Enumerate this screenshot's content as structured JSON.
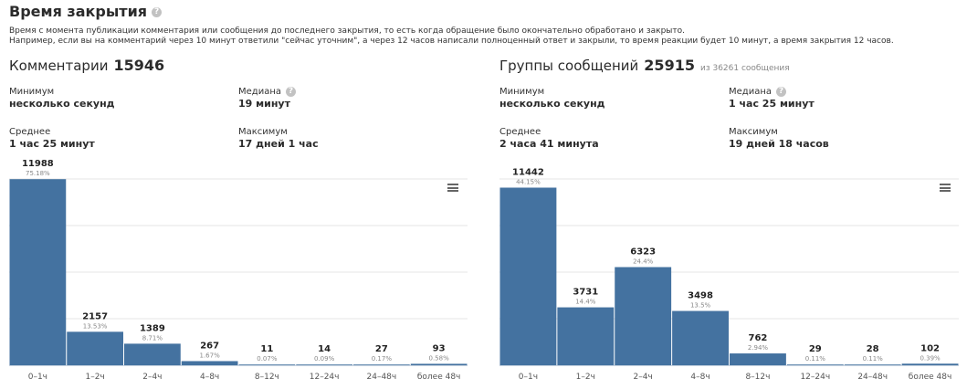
{
  "header": {
    "title": "Время закрытия",
    "help_icon": "question-circle-icon",
    "description_line1": "Время с момента публикации комментария или сообщения до последнего закрытия, то есть когда обращение было окончательно обработано и закрыто.",
    "description_line2": "Например, если вы на комментарий через 10 минут ответили \"сейчас уточним\", а через 12 часов написали полноценный ответ и закрыли, то время реакции будет 10 минут, а время закрытия 12 часов."
  },
  "panels": [
    {
      "title": "Комментарии",
      "count": "15946",
      "subtitle": "",
      "stats": {
        "min_label": "Минимум",
        "min_value": "несколько секунд",
        "median_label": "Медиана",
        "median_value": "19 минут",
        "avg_label": "Среднее",
        "avg_value": "1 час 25 минут",
        "max_label": "Максимум",
        "max_value": "17 дней 1 час"
      },
      "menu_icon": "hamburger-menu-icon"
    },
    {
      "title": "Группы сообщений",
      "count": "25915",
      "subtitle": "из 36261 сообщения",
      "stats": {
        "min_label": "Минимум",
        "min_value": "несколько секунд",
        "median_label": "Медиана",
        "median_value": "1 час 25 минут",
        "avg_label": "Среднее",
        "avg_value": "2 часа 41 минута",
        "max_label": "Максимум",
        "max_value": "19 дней 18 часов"
      },
      "menu_icon": "hamburger-menu-icon"
    }
  ],
  "chart_data": [
    {
      "type": "bar",
      "categories": [
        "0–1ч",
        "1–2ч",
        "2–4ч",
        "4–8ч",
        "8–12ч",
        "12–24ч",
        "24–48ч",
        "более 48ч"
      ],
      "values": [
        11988,
        2157,
        1389,
        267,
        11,
        14,
        27,
        93
      ],
      "percent_labels": [
        "75.18%",
        "13.53%",
        "8.71%",
        "1.67%",
        "0.07%",
        "0.09%",
        "0.17%",
        "0.58%"
      ],
      "ylim": [
        0,
        12000
      ],
      "grid": true,
      "bar_color": "#4472a0"
    },
    {
      "type": "bar",
      "categories": [
        "0–1ч",
        "1–2ч",
        "2–4ч",
        "4–8ч",
        "8–12ч",
        "12–24ч",
        "24–48ч",
        "более 48ч"
      ],
      "values": [
        11442,
        3731,
        6323,
        3498,
        762,
        29,
        28,
        102
      ],
      "percent_labels": [
        "44.15%",
        "14.4%",
        "24.4%",
        "13.5%",
        "2.94%",
        "0.11%",
        "0.11%",
        "0.39%"
      ],
      "ylim": [
        0,
        12000
      ],
      "grid": true,
      "bar_color": "#4472a0"
    }
  ]
}
